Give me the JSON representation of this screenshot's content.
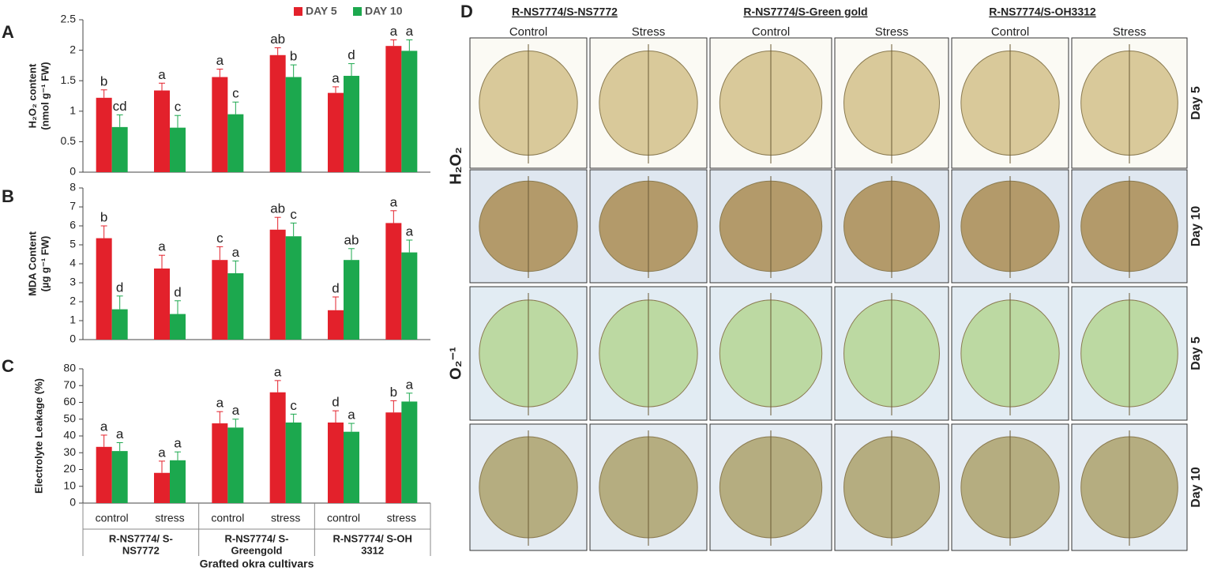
{
  "chart_data": [
    {
      "type": "bar",
      "panel": "A",
      "ylabel": [
        "H₂O₂ content",
        "(nmol g⁻¹ FW)"
      ],
      "categories": [
        null,
        null,
        null,
        null,
        null,
        null
      ],
      "legend": "top-right",
      "series": [
        {
          "name": "DAY 5",
          "color": "#e3212b",
          "values": [
            1.22,
            1.34,
            1.56,
            1.92,
            1.3,
            2.07
          ],
          "errors": [
            0.13,
            0.12,
            0.13,
            0.12,
            0.1,
            0.1
          ],
          "letters": [
            "b",
            "a",
            "a",
            "ab",
            "a",
            "a"
          ]
        },
        {
          "name": "DAY 10",
          "color": "#1ca84e",
          "values": [
            0.74,
            0.73,
            0.95,
            1.56,
            1.58,
            1.99
          ],
          "errors": [
            0.2,
            0.2,
            0.2,
            0.2,
            0.2,
            0.18
          ],
          "letters": [
            "cd",
            "c",
            "c",
            "b",
            "d",
            "a"
          ]
        }
      ],
      "ylim": [
        0,
        2.5
      ],
      "yticks": [
        0,
        0.5,
        1,
        1.5,
        2,
        2.5
      ]
    },
    {
      "type": "bar",
      "panel": "B",
      "ylabel": [
        "MDA  Content",
        "(µg g⁻¹ FW)"
      ],
      "categories": [
        null,
        null,
        null,
        null,
        null,
        null
      ],
      "series": [
        {
          "color": "#e3212b",
          "values": [
            5.35,
            3.75,
            4.2,
            5.8,
            1.55,
            6.15
          ],
          "errors": [
            0.65,
            0.7,
            0.7,
            0.65,
            0.7,
            0.65
          ],
          "letters": [
            "b",
            "a",
            "c",
            "ab",
            "d",
            "a"
          ]
        },
        {
          "color": "#1ca84e",
          "values": [
            1.6,
            1.35,
            3.5,
            5.45,
            4.2,
            4.6
          ],
          "errors": [
            0.7,
            0.7,
            0.65,
            0.7,
            0.6,
            0.65
          ],
          "letters": [
            "d",
            "d",
            "a",
            "c",
            "ab",
            "a"
          ]
        }
      ],
      "ylim": [
        0,
        8
      ],
      "yticks": [
        0,
        1,
        2,
        3,
        4,
        5,
        6,
        7,
        8
      ]
    },
    {
      "type": "bar",
      "panel": "C",
      "ylabel": [
        "Electrolyte Leakage (%)"
      ],
      "categories": [
        "control",
        "stress",
        "control",
        "stress",
        "control",
        "stress"
      ],
      "groups": [
        [
          "R-NS7774/ S-",
          "NS7772"
        ],
        [
          "R-NS7774/ S-",
          "Greengold"
        ],
        [
          "R-NS7774/ S-OH",
          "3312"
        ]
      ],
      "xlabel": "Grafted okra cultivars",
      "series": [
        {
          "color": "#e3212b",
          "values": [
            33.5,
            18,
            47.5,
            66,
            48,
            54
          ],
          "errors": [
            7,
            7,
            7,
            7,
            7,
            7
          ],
          "letters": [
            "a",
            "a",
            "a",
            "a",
            "d",
            "b"
          ]
        },
        {
          "color": "#1ca84e",
          "values": [
            31,
            25.5,
            45,
            48,
            42.5,
            60.5
          ],
          "errors": [
            5,
            5,
            5,
            5,
            5,
            5
          ],
          "letters": [
            "a",
            "a",
            "a",
            "c",
            "a",
            "a"
          ]
        }
      ],
      "ylim": [
        0,
        80
      ],
      "yticks": [
        0,
        10,
        20,
        30,
        40,
        50,
        60,
        70,
        80
      ]
    }
  ],
  "panel_d": {
    "label": "D",
    "grafts": [
      "R-NS7774/S-NS7772",
      "R-NS7774/S-Green gold",
      "R-NS7774/S-OH3312"
    ],
    "treatments": [
      "Control",
      "Stress",
      "Control",
      "Stress",
      "Control",
      "Stress"
    ],
    "stains": [
      "H₂O₂",
      "O₂⁻¹"
    ],
    "days": [
      "Day 5",
      "Day 10",
      "Day 5",
      "Day 10"
    ]
  }
}
